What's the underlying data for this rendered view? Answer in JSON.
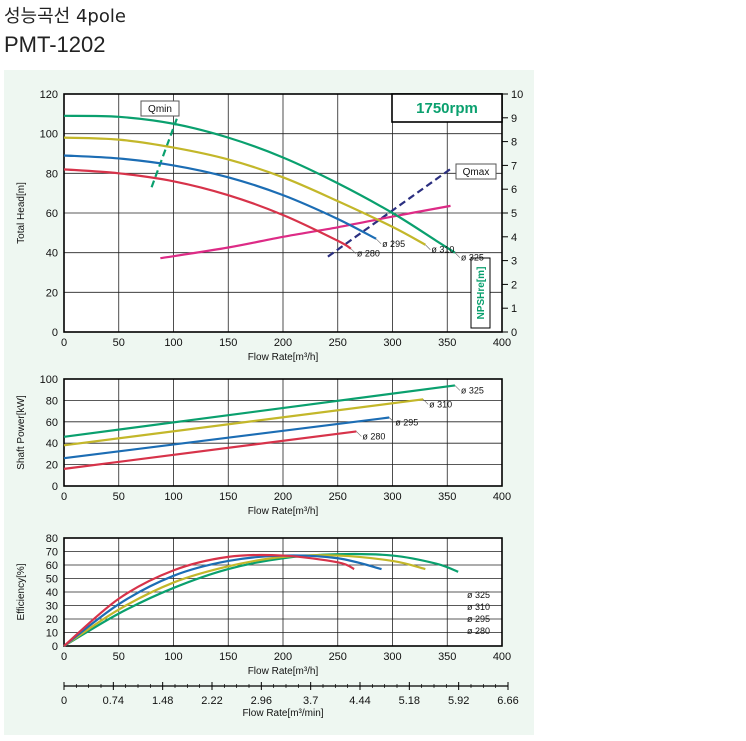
{
  "header": {
    "title_kr": "성능곡선 4pole",
    "model": "PMT-1202"
  },
  "colors": {
    "panel_bg": "#eef7f1",
    "axis": "#000000",
    "grid": "#222222",
    "d325": "#0aa06e",
    "d310": "#c3b72a",
    "d295": "#1c6db4",
    "d280": "#d7334a",
    "npsh": "#dd2b86",
    "qline": "#2a6fa6",
    "qmax_line": "#2b2f80"
  },
  "chart_data": [
    {
      "type": "line",
      "speed_label": "1750rpm",
      "ylabel": "Total Head[m]",
      "xlabel": "Flow Rate[m³/h]",
      "y2label": "NPSHre[m]",
      "xlim": [
        0,
        400
      ],
      "ylim": [
        0,
        120
      ],
      "y2lim": [
        0,
        10
      ],
      "x_ticks": [
        "0",
        "50",
        "100",
        "150",
        "200",
        "250",
        "300",
        "350",
        "400"
      ],
      "y_ticks": [
        "0",
        "20",
        "40",
        "60",
        "80",
        "100",
        "120"
      ],
      "y2_ticks": [
        "0",
        "1",
        "2",
        "3",
        "4",
        "5",
        "6",
        "7",
        "8",
        "9",
        "10"
      ],
      "grid": true,
      "series": [
        {
          "name": "ø 325",
          "color_key": "d325",
          "x": [
            0,
            50,
            100,
            150,
            200,
            250,
            300,
            340,
            357
          ],
          "y": [
            109,
            108.5,
            105,
            98,
            88,
            75,
            60,
            46,
            40
          ]
        },
        {
          "name": "ø 310",
          "color_key": "d310",
          "x": [
            0,
            50,
            100,
            150,
            200,
            250,
            300,
            330
          ],
          "y": [
            98,
            97,
            93,
            87,
            78,
            66,
            53,
            44
          ]
        },
        {
          "name": "ø 295",
          "color_key": "d295",
          "x": [
            0,
            50,
            100,
            150,
            200,
            250,
            285
          ],
          "y": [
            89,
            87.5,
            84,
            78,
            69,
            57,
            47
          ]
        },
        {
          "name": "ø 280",
          "color_key": "d280",
          "x": [
            0,
            50,
            100,
            150,
            200,
            250,
            262
          ],
          "y": [
            82,
            80,
            76,
            69,
            59,
            46,
            42
          ]
        }
      ],
      "npsh": {
        "name": "NPSHre",
        "color_key": "npsh",
        "x": [
          88,
          150,
          200,
          250,
          300,
          353
        ],
        "y": [
          3.1,
          3.55,
          4.0,
          4.4,
          4.85,
          5.3
        ]
      },
      "qmin": {
        "label": "Qmin",
        "x": [
          80,
          104
        ],
        "y": [
          73,
          109
        ]
      },
      "qmax": {
        "label": "Qmax",
        "x": [
          241,
          355
        ],
        "y": [
          38,
          83
        ]
      }
    },
    {
      "type": "line",
      "ylabel": "Shaft Power[kW]",
      "xlabel": "Flow Rate[m³/h]",
      "xlim": [
        0,
        400
      ],
      "ylim": [
        0,
        100
      ],
      "x_ticks": [
        "0",
        "50",
        "100",
        "150",
        "200",
        "250",
        "300",
        "350",
        "400"
      ],
      "y_ticks": [
        "0",
        "20",
        "40",
        "60",
        "80",
        "100"
      ],
      "grid": true,
      "series": [
        {
          "name": "ø 325",
          "color_key": "d325",
          "x": [
            0,
            357
          ],
          "y": [
            46,
            94
          ]
        },
        {
          "name": "ø 310",
          "color_key": "d310",
          "x": [
            0,
            328
          ],
          "y": [
            38,
            81
          ]
        },
        {
          "name": "ø 295",
          "color_key": "d295",
          "x": [
            0,
            297
          ],
          "y": [
            26,
            64
          ]
        },
        {
          "name": "ø 280",
          "color_key": "d280",
          "x": [
            0,
            267
          ],
          "y": [
            16,
            51
          ]
        }
      ]
    },
    {
      "type": "line",
      "ylabel": "Efficiency[%]",
      "xlabel": "Flow Rate[m³/h]",
      "x2label": "Flow Rate[m³/min]",
      "xlim": [
        0,
        400
      ],
      "ylim": [
        0,
        80
      ],
      "x_ticks": [
        "0",
        "50",
        "100",
        "150",
        "200",
        "250",
        "300",
        "350",
        "400"
      ],
      "y_ticks": [
        "0",
        "10",
        "20",
        "30",
        "40",
        "50",
        "60",
        "70",
        "80"
      ],
      "x2_ticks": [
        "0",
        "0.74",
        "1.48",
        "2.22",
        "2.96",
        "3.7",
        "4.44",
        "5.18",
        "5.92",
        "6.66"
      ],
      "grid": true,
      "legend": [
        "ø 325",
        "ø 310",
        "ø 295",
        "ø 280"
      ],
      "series": [
        {
          "name": "ø 325",
          "color_key": "d325",
          "x": [
            0,
            50,
            100,
            150,
            200,
            250,
            300,
            340,
            360
          ],
          "y": [
            0,
            24,
            43,
            57,
            65,
            68,
            67,
            61,
            55
          ]
        },
        {
          "name": "ø 310",
          "color_key": "d310",
          "x": [
            0,
            50,
            100,
            150,
            200,
            250,
            300,
            330
          ],
          "y": [
            0,
            27,
            47,
            59,
            66,
            67,
            63,
            57
          ]
        },
        {
          "name": "ø 295",
          "color_key": "d295",
          "x": [
            0,
            50,
            100,
            150,
            200,
            250,
            290
          ],
          "y": [
            0,
            31,
            52,
            63,
            67,
            65,
            57
          ]
        },
        {
          "name": "ø 280",
          "color_key": "d280",
          "x": [
            0,
            50,
            100,
            150,
            200,
            250,
            265
          ],
          "y": [
            0,
            35,
            56,
            66,
            67,
            62,
            57
          ]
        }
      ]
    }
  ]
}
